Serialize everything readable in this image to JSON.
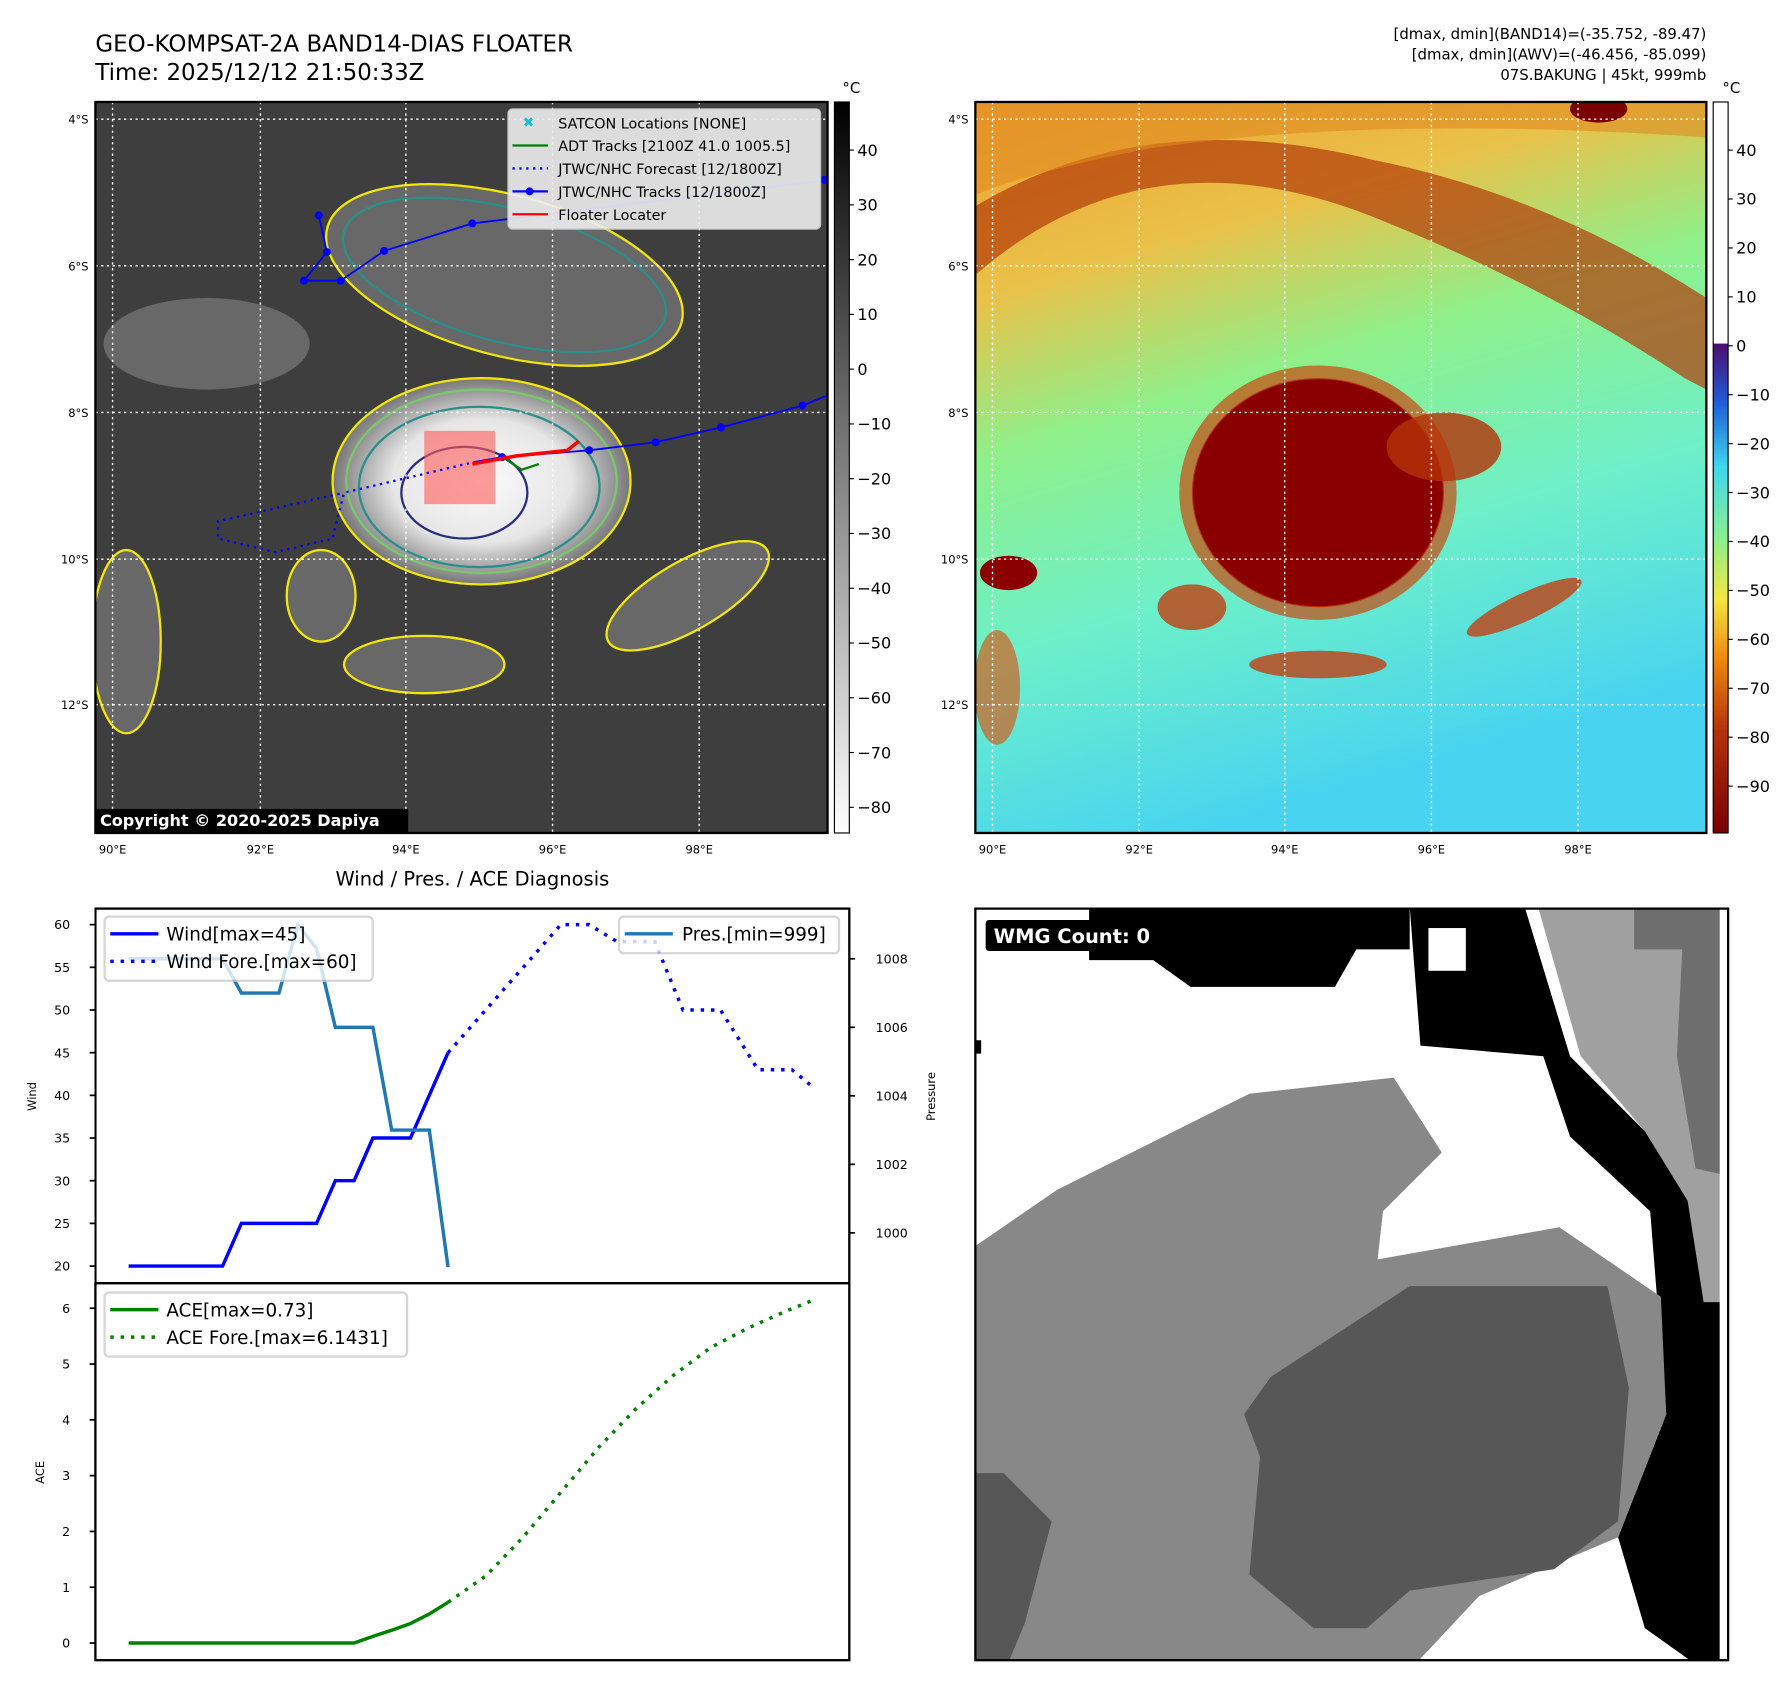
{
  "header": {
    "title": "GEO-KOMPSAT-2A BAND14-DIAS FLOATER",
    "time": "Time: 2025/12/12 21:50:33Z",
    "info_line1": "[dmax, dmin](BAND14)=(-35.752, -89.47)",
    "info_line2": "[dmax, dmin](AWV)=(-46.456, -85.099)",
    "info_line3": "07S.BAKUNG | 45kt, 999mb"
  },
  "map": {
    "lat_labels": [
      "4°S",
      "6°S",
      "8°S",
      "10°S",
      "12°S"
    ],
    "lon_labels": [
      "90°E",
      "92°E",
      "94°E",
      "96°E",
      "98°E"
    ],
    "copyright": "Copyright © 2020-2025 Dapiya",
    "unit": "°C",
    "left_colorbar_ticks": [
      "40",
      "30",
      "20",
      "10",
      "0",
      "−10",
      "−20",
      "−30",
      "−40",
      "−50",
      "−60",
      "−70",
      "−80"
    ],
    "right_colorbar_ticks": [
      "40",
      "30",
      "20",
      "10",
      "0",
      "−10",
      "−20",
      "−30",
      "−40",
      "−50",
      "−60",
      "−70",
      "−80",
      "−90"
    ],
    "legend": [
      {
        "label": "SATCON Locations [NONE]",
        "color": "#17becf"
      },
      {
        "label": "ADT Tracks [2100Z 41.0 1005.5]",
        "color": "#008000"
      },
      {
        "label": "JTWC/NHC Forecast [12/1800Z]",
        "color": "#0000ff"
      },
      {
        "label": "JTWC/NHC Tracks [12/1800Z]",
        "color": "#0000ff"
      },
      {
        "label": "Floater Locater",
        "color": "#ff0000"
      }
    ]
  },
  "wmg": {
    "label": "WMG Count: 0"
  },
  "chart_data": [
    {
      "type": "line",
      "title": "Wind / Pres. / ACE Diagnosis",
      "ylabel": "Wind",
      "y2label": "Pressure",
      "ylim": [
        19,
        61
      ],
      "y2lim": [
        999,
        1009.5
      ],
      "yticks": [
        "20",
        "25",
        "30",
        "35",
        "40",
        "45",
        "50",
        "55",
        "60"
      ],
      "y2ticks": [
        "1000",
        "1002",
        "1004",
        "1006",
        "1008"
      ],
      "series": [
        {
          "name": "Wind[max=45]",
          "axis": "left",
          "color": "#0000ff",
          "style": "solid",
          "x": [
            0,
            1,
            2,
            3,
            4,
            5,
            6,
            7,
            8,
            9,
            10,
            11,
            12,
            13,
            14,
            15,
            16,
            17
          ],
          "values": [
            20,
            20,
            20,
            20,
            20,
            20,
            25,
            25,
            25,
            25,
            25,
            30,
            30,
            35,
            35,
            35,
            40,
            45
          ]
        },
        {
          "name": "Wind Fore.[max=60]",
          "axis": "left",
          "color": "#0000ff",
          "style": "dotted",
          "x": [
            17,
            23,
            24.5,
            26,
            28,
            29.5,
            31.5,
            33.5,
            35.3,
            36.4
          ],
          "values": [
            45,
            60,
            60,
            58,
            58,
            50,
            50,
            43,
            43,
            41
          ]
        },
        {
          "name": "Pres.[min=999]",
          "axis": "right",
          "color": "#1f77b4",
          "style": "solid",
          "x": [
            0,
            1,
            2,
            3,
            4,
            5,
            6,
            7,
            8,
            9,
            10,
            11,
            12,
            13,
            14,
            15,
            16,
            17
          ],
          "values": [
            1008,
            1008,
            1008,
            1008,
            1008,
            1008,
            1007,
            1007,
            1007,
            1009,
            1008.3,
            1006,
            1006,
            1006,
            1003,
            1003,
            1003,
            999
          ]
        }
      ]
    },
    {
      "type": "line",
      "ylabel": "ACE",
      "ylim": [
        -0.3,
        6.4
      ],
      "yticks": [
        "0",
        "1",
        "2",
        "3",
        "4",
        "5",
        "6"
      ],
      "series": [
        {
          "name": "ACE[max=0.73]",
          "color": "#008000",
          "style": "solid",
          "x": [
            0,
            12,
            13,
            14,
            15,
            16,
            17
          ],
          "values": [
            0,
            0,
            0.12,
            0.23,
            0.35,
            0.52,
            0.73
          ]
        },
        {
          "name": "ACE Fore.[max=6.1431]",
          "color": "#008000",
          "style": "dotted",
          "x": [
            17,
            19,
            21,
            23,
            25,
            27,
            29,
            31,
            33,
            35,
            36.4
          ],
          "values": [
            0.73,
            1.2,
            1.9,
            2.7,
            3.5,
            4.2,
            4.8,
            5.3,
            5.65,
            5.95,
            6.14
          ]
        }
      ]
    }
  ]
}
